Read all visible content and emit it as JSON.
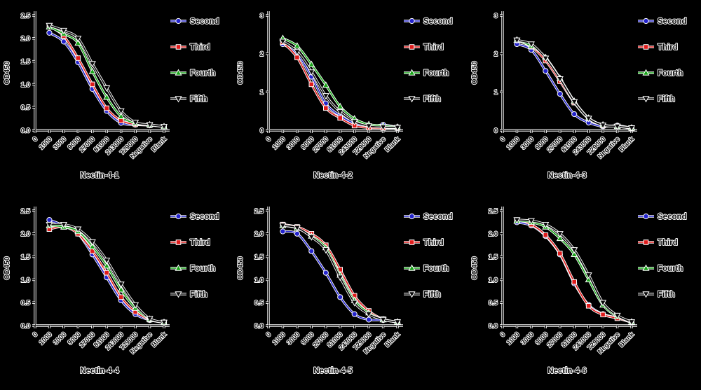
{
  "figure": {
    "background_color": "#000000",
    "text_color": "#0d0d0d",
    "halo_color": "#ffffff",
    "grid": {
      "rows": 2,
      "cols": 3
    }
  },
  "legend": {
    "position": "top-right-of-each-chart",
    "items": [
      {
        "label": "Second",
        "color": "#2424cd",
        "marker": "circle"
      },
      {
        "label": "Third",
        "color": "#e01b1b",
        "marker": "square"
      },
      {
        "label": "Fourth",
        "color": "#18a418",
        "marker": "triangle-up"
      },
      {
        "label": "Fifth",
        "color": "#0a0a0a",
        "marker": "triangle-down"
      }
    ]
  },
  "chart_data": [
    {
      "type": "line",
      "title": "Nectin-4-1",
      "xlabel": "",
      "ylabel": "OD450",
      "ylim": [
        0,
        2.5
      ],
      "yticks": [
        "0.0",
        "0.5",
        "1.0",
        "1.5",
        "2.0",
        "2.5"
      ],
      "categories": [
        "0",
        "1000",
        "3000",
        "9000",
        "27000",
        "81000",
        "243000",
        "729000",
        "Negative",
        "Blank"
      ],
      "grid_lines": false,
      "series": [
        {
          "name": "Second",
          "values": [
            2.12,
            1.93,
            1.48,
            0.9,
            0.42,
            0.16,
            0.12,
            0.11,
            0.08
          ]
        },
        {
          "name": "Third",
          "values": [
            2.27,
            2.05,
            1.57,
            1.0,
            0.48,
            0.21,
            0.13,
            0.11,
            0.08
          ]
        },
        {
          "name": "Fourth",
          "values": [
            2.25,
            2.1,
            1.9,
            1.28,
            0.72,
            0.3,
            0.15,
            0.12,
            0.08
          ]
        },
        {
          "name": "Fifth",
          "values": [
            2.28,
            2.17,
            2.0,
            1.45,
            0.92,
            0.42,
            0.17,
            0.12,
            0.08
          ]
        }
      ]
    },
    {
      "type": "line",
      "title": "Nectin-4-2",
      "xlabel": "",
      "ylabel": "OD450",
      "ylim": [
        0,
        3
      ],
      "yticks": [
        "0",
        "1",
        "2",
        "3"
      ],
      "categories": [
        "0",
        "1000",
        "3000",
        "9000",
        "27000",
        "81000",
        "243000",
        "729000",
        "Negative",
        "Blank"
      ],
      "grid_lines": false,
      "series": [
        {
          "name": "Second",
          "values": [
            2.25,
            2.0,
            1.4,
            0.7,
            0.38,
            0.18,
            0.1,
            0.14,
            0.08
          ]
        },
        {
          "name": "Third",
          "values": [
            2.3,
            1.9,
            1.2,
            0.58,
            0.32,
            0.12,
            0.07,
            0.06,
            0.06
          ]
        },
        {
          "name": "Fourth",
          "values": [
            2.4,
            2.2,
            1.72,
            1.18,
            0.62,
            0.3,
            0.15,
            0.12,
            0.08
          ]
        },
        {
          "name": "Fifth",
          "values": [
            2.32,
            2.05,
            1.52,
            0.9,
            0.48,
            0.22,
            0.11,
            0.08,
            0.07
          ]
        }
      ]
    },
    {
      "type": "line",
      "title": "Nectin-4-3",
      "xlabel": "",
      "ylabel": "OD450",
      "ylim": [
        0,
        3
      ],
      "yticks": [
        "0",
        "1",
        "2",
        "3"
      ],
      "categories": [
        "0",
        "1000",
        "3000",
        "9000",
        "27000",
        "81000",
        "243000",
        "729000",
        "Negative",
        "Blank"
      ],
      "grid_lines": false,
      "series": [
        {
          "name": "Second",
          "values": [
            2.25,
            2.1,
            1.55,
            0.95,
            0.42,
            0.2,
            0.1,
            0.12,
            0.06
          ]
        },
        {
          "name": "Third",
          "values": [
            2.35,
            2.18,
            1.82,
            1.28,
            0.72,
            0.3,
            0.12,
            0.1,
            0.05
          ]
        },
        {
          "name": "Fourth",
          "values": [
            2.36,
            2.2,
            1.9,
            1.36,
            0.76,
            0.32,
            0.14,
            0.1,
            0.06
          ]
        },
        {
          "name": "Fifth",
          "values": [
            2.35,
            2.25,
            1.88,
            1.34,
            0.74,
            0.31,
            0.13,
            0.1,
            0.06
          ]
        }
      ]
    },
    {
      "type": "line",
      "title": "Nectin-4-4",
      "xlabel": "",
      "ylabel": "OD450",
      "ylim": [
        0,
        2.5
      ],
      "yticks": [
        "0.0",
        "0.5",
        "1.0",
        "1.5",
        "2.0",
        "2.5"
      ],
      "categories": [
        "0",
        "1000",
        "3000",
        "9000",
        "27000",
        "81000",
        "243000",
        "729000",
        "Negative",
        "Blank"
      ],
      "grid_lines": false,
      "series": [
        {
          "name": "Second",
          "values": [
            2.3,
            2.18,
            2.0,
            1.55,
            1.05,
            0.55,
            0.25,
            0.12,
            0.07
          ]
        },
        {
          "name": "Third",
          "values": [
            2.1,
            2.15,
            2.0,
            1.62,
            1.15,
            0.62,
            0.3,
            0.13,
            0.07
          ]
        },
        {
          "name": "Fourth",
          "values": [
            2.18,
            2.15,
            2.05,
            1.72,
            1.3,
            0.78,
            0.38,
            0.14,
            0.07
          ]
        },
        {
          "name": "Fifth",
          "values": [
            2.2,
            2.2,
            2.1,
            1.82,
            1.42,
            0.9,
            0.45,
            0.15,
            0.07
          ]
        }
      ]
    },
    {
      "type": "line",
      "title": "Nectin-4-5",
      "xlabel": "",
      "ylabel": "OD450",
      "ylim": [
        0,
        2.5
      ],
      "yticks": [
        "0.0",
        "0.5",
        "1.0",
        "1.5",
        "2.0",
        "2.5"
      ],
      "categories": [
        "0",
        "1000",
        "3000",
        "9000",
        "27000",
        "81000",
        "243000",
        "729000",
        "Negative",
        "Blank"
      ],
      "grid_lines": false,
      "series": [
        {
          "name": "Second",
          "values": [
            2.05,
            2.0,
            1.62,
            1.15,
            0.62,
            0.25,
            0.13,
            0.12,
            0.07
          ]
        },
        {
          "name": "Third",
          "values": [
            2.2,
            2.15,
            2.0,
            1.75,
            1.22,
            0.65,
            0.32,
            0.14,
            0.08
          ]
        },
        {
          "name": "Fourth",
          "values": [
            2.18,
            2.12,
            1.95,
            1.7,
            1.1,
            0.55,
            0.28,
            0.13,
            0.08
          ]
        },
        {
          "name": "Fifth",
          "values": [
            2.18,
            2.13,
            1.93,
            1.65,
            1.05,
            0.5,
            0.25,
            0.13,
            0.08
          ]
        }
      ]
    },
    {
      "type": "line",
      "title": "Nectin-4-6",
      "xlabel": "",
      "ylabel": "OD450",
      "ylim": [
        0,
        2.5
      ],
      "yticks": [
        "0.0",
        "0.5",
        "1.0",
        "1.5",
        "2.0",
        "2.5"
      ],
      "categories": [
        "0",
        "1000",
        "3000",
        "9000",
        "27000",
        "81000",
        "243000",
        "729000",
        "Negative",
        "Blank"
      ],
      "grid_lines": false,
      "series": [
        {
          "name": "Second",
          "values": [
            2.25,
            2.18,
            1.95,
            1.55,
            0.92,
            0.45,
            0.25,
            0.17,
            0.07
          ]
        },
        {
          "name": "Third",
          "values": [
            2.3,
            2.2,
            1.97,
            1.57,
            0.95,
            0.43,
            0.24,
            0.16,
            0.07
          ]
        },
        {
          "name": "Fourth",
          "values": [
            2.28,
            2.25,
            2.15,
            1.9,
            1.55,
            1.0,
            0.45,
            0.2,
            0.08
          ]
        },
        {
          "name": "Fifth",
          "values": [
            2.3,
            2.28,
            2.2,
            2.0,
            1.65,
            1.1,
            0.5,
            0.22,
            0.08
          ]
        }
      ]
    }
  ]
}
